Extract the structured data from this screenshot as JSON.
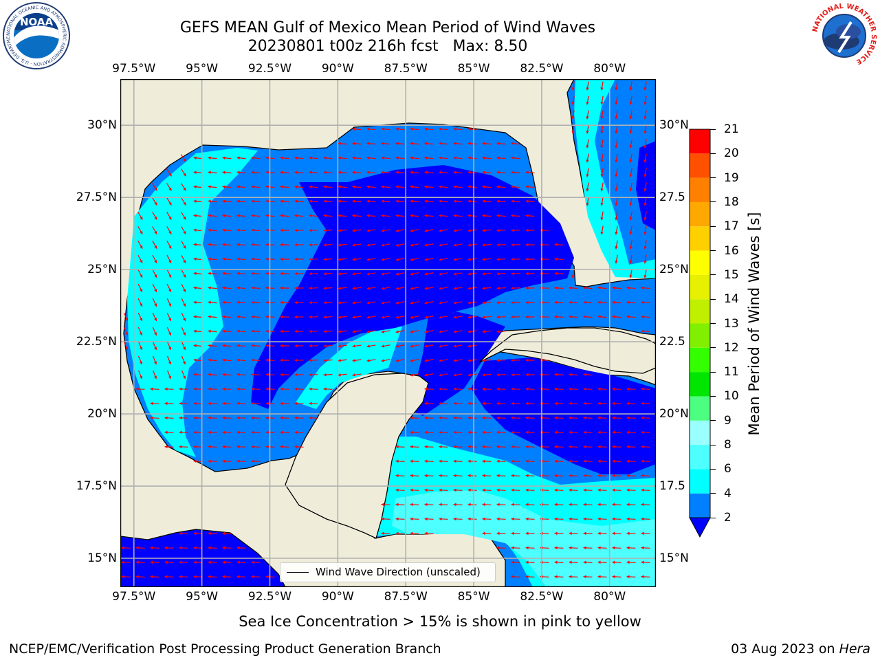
{
  "header": {
    "title_line1": "GEFS MEAN Gulf of Mexico Mean Period of Wind Waves",
    "title_line2": "20230801 t00z 216h fcst   Max: 8.50"
  },
  "logos": {
    "noaa_text": "NOAA",
    "noaa_ring_text": "NATIONAL OCEANIC AND ATMOSPHERIC ADMINISTRATION · U.S. DEPARTMENT OF COMMERCE",
    "nws_ring_text": "NATIONAL WEATHER SERVICE"
  },
  "map": {
    "lon_ticks": [
      "97.5°W",
      "95°W",
      "92.5°W",
      "90°W",
      "87.5°W",
      "85°W",
      "82.5°W",
      "80°W"
    ],
    "lat_ticks": [
      "30°N",
      "27.5°N",
      "25°N",
      "22.5°N",
      "20°N",
      "17.5°N",
      "15°N"
    ],
    "lat_ticks_right": [
      "30°N",
      "27.5",
      "25°N",
      "22.5",
      "20°N",
      "17.5",
      "15°N"
    ],
    "extent": {
      "lon_min": -98,
      "lon_max": -78.3,
      "lat_min": 14,
      "lat_max": 31.6
    },
    "colors": {
      "land": "#efedda",
      "band_2_4": "#0080ff",
      "band_0_2": "#0000ff",
      "band_4_6": "#00ffff",
      "band_6_8": "#4dffff",
      "arrow": "#ff0000",
      "grid": "#b0b0b0",
      "coast": "#000000"
    },
    "legend_label": "Wind Wave Direction (unscaled)"
  },
  "colorbar": {
    "label": "Mean Period of Wind Waves [s]",
    "ticks": [
      "2",
      "4",
      "6",
      "8",
      "9",
      "10",
      "11",
      "12",
      "13",
      "14",
      "15",
      "16",
      "17",
      "18",
      "19",
      "20",
      "21"
    ],
    "segment_colors": [
      "#0080ff",
      "#00ffff",
      "#4dffff",
      "#99ffff",
      "#4dff80",
      "#00e600",
      "#33ff00",
      "#80f000",
      "#c0f000",
      "#e6f000",
      "#ffff00",
      "#ffd000",
      "#ffa800",
      "#ff8000",
      "#ff5000",
      "#ff0000"
    ],
    "under_color": "#0000ff"
  },
  "footer": {
    "sea_ice_note": "Sea Ice Concentration > 15% is shown in pink to yellow",
    "credit": "NCEP/EMC/Verification Post Processing Product Generation Branch",
    "date": "03 Aug 2023 on ",
    "machine": "Hera"
  }
}
